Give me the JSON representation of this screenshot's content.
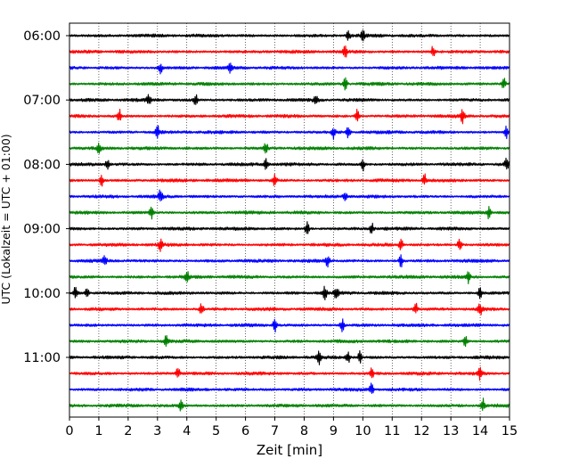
{
  "chart_data": {
    "type": "line",
    "title": "",
    "xlabel": "Zeit  [min]",
    "ylabel": "UTC (Lokalzeit = UTC + 01:00)",
    "xlim": [
      0,
      15
    ],
    "x_ticks": [
      "0",
      "1",
      "2",
      "3",
      "4",
      "5",
      "6",
      "7",
      "8",
      "9",
      "10",
      "11",
      "12",
      "13",
      "14",
      "15"
    ],
    "x_grid": "dotted vertical gridlines at every minute",
    "y_ticks": [
      {
        "label": "06:00",
        "trace_index": 0
      },
      {
        "label": "07:00",
        "trace_index": 4
      },
      {
        "label": "08:00",
        "trace_index": 8
      },
      {
        "label": "09:00",
        "trace_index": 12
      },
      {
        "label": "10:00",
        "trace_index": 16
      },
      {
        "label": "11:00",
        "trace_index": 20
      }
    ],
    "trace_colors": [
      "#000000",
      "#ff0000",
      "#0000ff",
      "#008000"
    ],
    "trace_interval_minutes": 15,
    "traces": [
      {
        "start": "06:00",
        "color": "#000000",
        "spikes": [
          9.5,
          10.0
        ]
      },
      {
        "start": "06:15",
        "color": "#ff0000",
        "spikes": [
          9.4,
          12.4
        ]
      },
      {
        "start": "06:30",
        "color": "#0000ff",
        "spikes": [
          3.1,
          5.5
        ]
      },
      {
        "start": "06:45",
        "color": "#008000",
        "spikes": [
          9.4,
          14.8
        ]
      },
      {
        "start": "07:00",
        "color": "#000000",
        "spikes": [
          2.7,
          4.3,
          8.4
        ]
      },
      {
        "start": "07:15",
        "color": "#ff0000",
        "spikes": [
          1.7,
          9.8,
          13.4
        ]
      },
      {
        "start": "07:30",
        "color": "#0000ff",
        "spikes": [
          3.0,
          9.0,
          9.5,
          14.9
        ]
      },
      {
        "start": "07:45",
        "color": "#008000",
        "spikes": [
          1.0,
          6.7
        ]
      },
      {
        "start": "08:00",
        "color": "#000000",
        "spikes": [
          1.3,
          6.7,
          10.0,
          14.9
        ]
      },
      {
        "start": "08:15",
        "color": "#ff0000",
        "spikes": [
          1.1,
          7.0,
          12.1
        ]
      },
      {
        "start": "08:30",
        "color": "#0000ff",
        "spikes": [
          3.1,
          9.4
        ]
      },
      {
        "start": "08:45",
        "color": "#008000",
        "spikes": [
          2.8,
          14.3
        ]
      },
      {
        "start": "09:00",
        "color": "#000000",
        "spikes": [
          8.1,
          10.3
        ]
      },
      {
        "start": "09:15",
        "color": "#ff0000",
        "spikes": [
          3.1,
          11.3,
          13.3
        ]
      },
      {
        "start": "09:30",
        "color": "#0000ff",
        "spikes": [
          1.2,
          8.8,
          11.3
        ]
      },
      {
        "start": "09:45",
        "color": "#008000",
        "spikes": [
          4.0,
          13.6
        ]
      },
      {
        "start": "10:00",
        "color": "#000000",
        "spikes": [
          0.2,
          0.6,
          8.7,
          9.1,
          14.0
        ]
      },
      {
        "start": "10:15",
        "color": "#ff0000",
        "spikes": [
          4.5,
          11.8,
          14.0
        ]
      },
      {
        "start": "10:30",
        "color": "#0000ff",
        "spikes": [
          7.0,
          9.3
        ]
      },
      {
        "start": "10:45",
        "color": "#008000",
        "spikes": [
          3.3,
          13.5
        ]
      },
      {
        "start": "11:00",
        "color": "#000000",
        "spikes": [
          8.5,
          9.5,
          9.9
        ]
      },
      {
        "start": "11:15",
        "color": "#ff0000",
        "spikes": [
          3.7,
          10.3,
          14.0
        ]
      },
      {
        "start": "11:30",
        "color": "#0000ff",
        "spikes": [
          10.3
        ]
      },
      {
        "start": "11:45",
        "color": "#008000",
        "spikes": [
          3.8,
          14.1
        ]
      }
    ]
  }
}
